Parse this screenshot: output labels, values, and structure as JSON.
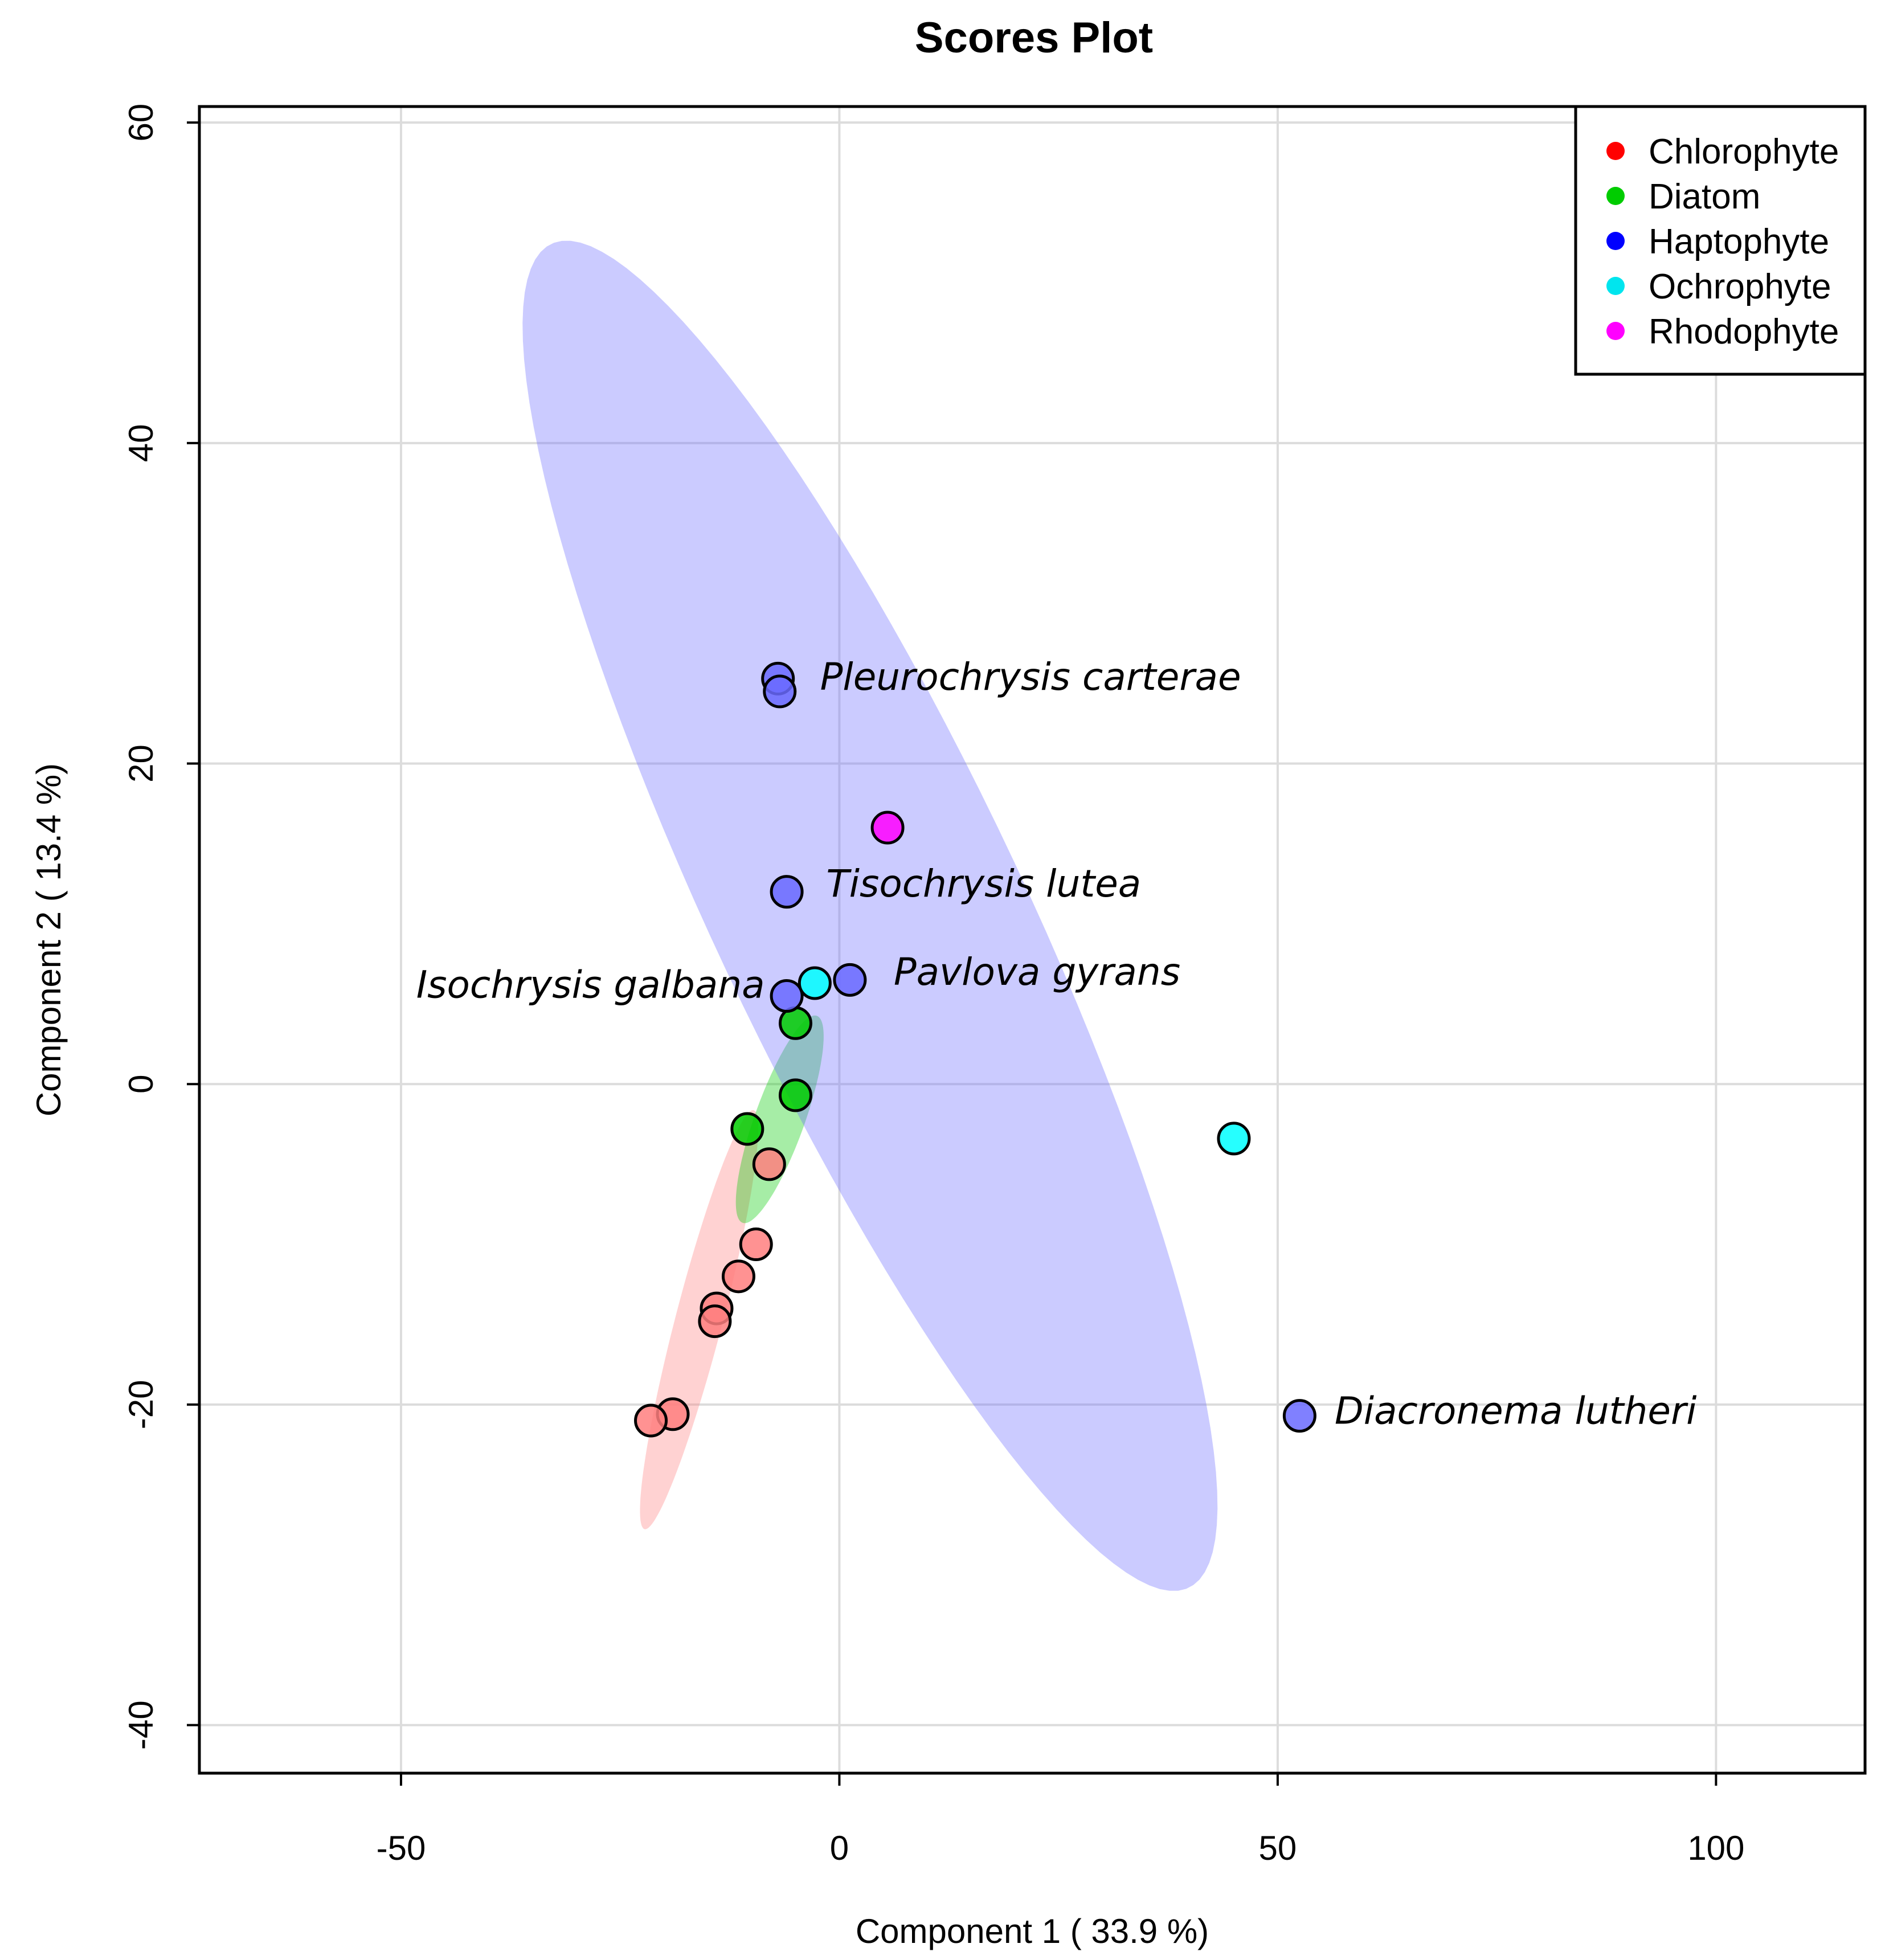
{
  "chart_data": {
    "type": "scatter",
    "title": "Scores Plot",
    "xlabel": "Component 1 ( 33.9 %)",
    "ylabel": "Component 2 ( 13.4 %)",
    "xlim": [
      -73,
      117
    ],
    "ylim": [
      -43,
      61
    ],
    "xticks": [
      -50,
      0,
      50,
      100
    ],
    "yticks": [
      -40,
      -20,
      0,
      20,
      40,
      60
    ],
    "xtick_labels": [
      "-50",
      "0",
      "50",
      "100"
    ],
    "ytick_labels": [
      "-40",
      "-20",
      "0",
      "20",
      "40",
      "60"
    ],
    "grid": true,
    "legend_position": "top-right",
    "series": [
      {
        "name": "Chlorophyte",
        "color": "#ff0000",
        "fill": "#ff7f7f",
        "points": [
          [
            -8,
            -5
          ],
          [
            -9.5,
            -10
          ],
          [
            -11.5,
            -12
          ],
          [
            -14,
            -14
          ],
          [
            -14.2,
            -14.8
          ],
          [
            -19,
            -20.6
          ],
          [
            -21.5,
            -21
          ]
        ],
        "ellipse": {
          "center": [
            -16,
            -14.7
          ],
          "semi_major": 14.5,
          "semi_minor": 2.5,
          "angle_deg": 64
        }
      },
      {
        "name": "Diatom",
        "color": "#00cc00",
        "fill": "#00cc00",
        "points": [
          [
            -5,
            3.8
          ],
          [
            -5,
            -0.7
          ],
          [
            -10.5,
            -2.8
          ]
        ],
        "ellipse": {
          "center": [
            -6.8,
            -2.2
          ],
          "semi_major": 7.8,
          "semi_minor": 2.5,
          "angle_deg": 54
        }
      },
      {
        "name": "Haptophyte",
        "color": "#0000ff",
        "fill": "#6a6aff",
        "points": [
          [
            -7,
            25.3
          ],
          [
            -6.8,
            24.5
          ],
          [
            -6,
            12
          ],
          [
            -6,
            5.5
          ],
          [
            1.2,
            6.5
          ],
          [
            52.5,
            -20.7
          ]
        ],
        "ellipse": {
          "center": [
            3.5,
            10.5
          ],
          "semi_major": 56,
          "semi_minor": 14.5,
          "angle_deg": -47
        }
      },
      {
        "name": "Ochrophyte",
        "color": "#00e5ee",
        "fill": "#00ffff",
        "points": [
          [
            -2.8,
            6.3
          ],
          [
            45,
            -3.4
          ]
        ]
      },
      {
        "name": "Rhodophyte",
        "color": "#ff00ff",
        "fill": "#ff00ff",
        "points": [
          [
            5.5,
            16
          ]
        ]
      }
    ],
    "annotations": [
      {
        "text": "Pleurochrysis carterae",
        "x": -2.2,
        "y": 24.6,
        "anchor": "start"
      },
      {
        "text": "Tisochrysis lutea",
        "x": -1.5,
        "y": 11.7,
        "anchor": "start"
      },
      {
        "text": "Isochrysis galbana",
        "x": -8.5,
        "y": 5.4,
        "anchor": "end"
      },
      {
        "text": "Pavlova gyrans",
        "x": 6.2,
        "y": 6.2,
        "anchor": "start"
      },
      {
        "text": "Diacronema lutheri",
        "x": 56.5,
        "y": -21.2,
        "anchor": "start"
      }
    ]
  }
}
